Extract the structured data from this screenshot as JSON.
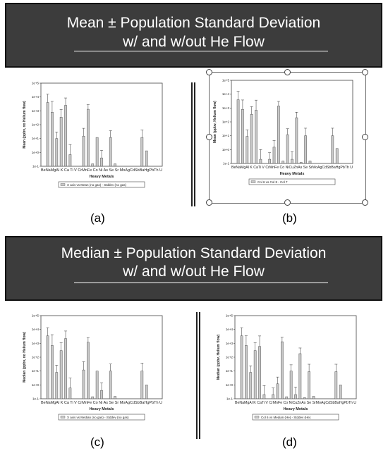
{
  "banners": [
    {
      "line1": "Mean ± Population Standard Deviation",
      "line2": "w/ and w/out He Flow"
    },
    {
      "line1": "Median ± Population Standard Deviation",
      "line2": "w/ and w/out He Flow"
    }
  ],
  "colors": {
    "banner_bg": "#3c3c3c",
    "bar_fill": "#c8c8c8",
    "bar_stroke": "#555555"
  },
  "chart_data": [
    {
      "panel": "(a)",
      "type": "bar",
      "log_scale": true,
      "ylim": [
        0.1,
        100000
      ],
      "yticks": [
        "1e-1",
        "1e+0",
        "1e+1",
        "1e+2",
        "1e+3",
        "1e+4",
        "1e+5"
      ],
      "xlabel": "Heavy Metals",
      "ylabel": "Mean (ppbv, no Helium flow)",
      "categories": [
        "Be",
        "Na",
        "Mg",
        "Al",
        "K",
        "Ca",
        "Ti",
        "V",
        "Cr",
        "Mn",
        "Fe",
        "Co",
        "Ni",
        "Cu",
        "Zn",
        "As",
        "Se",
        "Sr",
        "Mo",
        "Ag",
        "Cd",
        "Sb",
        "Ba",
        "Hg",
        "Pb",
        "Th",
        "U"
      ],
      "tick_label_text": "BeNaMgAl  K  Ca Ti  V  CrMnFe Co Ni As Se Sr MoAgCdSbBaHgPbTh U",
      "values": [
        0.1,
        4000,
        800,
        10,
        350,
        2500,
        0.7,
        0.1,
        0.1,
        15,
        1300,
        0.15,
        12,
        0.4,
        0.1,
        12,
        0.15,
        0.1,
        0.1,
        0.1,
        0.1,
        0.1,
        12,
        1.3,
        0.1,
        0.1,
        0.1
      ],
      "err_upper": [
        0,
        12000,
        4000,
        20,
        900,
        6000,
        3,
        0,
        0,
        40,
        1500,
        0,
        0,
        1,
        0,
        25,
        0,
        0,
        0,
        0,
        0,
        0,
        30,
        0,
        0,
        0,
        0
      ],
      "legend": "X axis vs Mean (no gas) - Stddev (no gas)"
    },
    {
      "panel": "(b)",
      "type": "bar",
      "log_scale": true,
      "ylim": [
        0.1,
        100000
      ],
      "yticks": [
        "1e-1",
        "1e+0",
        "1e+1",
        "1e+2",
        "1e+3",
        "1e+4",
        "1e+5"
      ],
      "xlabel": "Heavy Metals",
      "ylabel": "Mean (ppbv, Helium flow)",
      "categories": [
        "Be",
        "Na",
        "Mg",
        "Al",
        "K",
        "Ca",
        "Ti",
        "V",
        "Cr",
        "Mn",
        "Fe",
        "Co",
        "Ni",
        "Cu",
        "Zn",
        "As",
        "Se",
        "Sr",
        "Mo",
        "Ag",
        "Cd",
        "Sb",
        "Ba",
        "Hg",
        "Pb",
        "Th",
        "U"
      ],
      "tick_label_text": "BeNaMgAl  K  CaTi  V  CrMnFe Co NiCuZnAs Se SrMoAgCdSbBaHgPbTh  U",
      "values": [
        0.1,
        4000,
        800,
        9,
        350,
        700,
        0.2,
        0.1,
        0.2,
        1.5,
        1400,
        0.15,
        12,
        0.2,
        200,
        0.12,
        10,
        0.15,
        0.1,
        0.1,
        0.1,
        0.1,
        10,
        1.2,
        0.1,
        0.1,
        0.1
      ],
      "err_upper": [
        0,
        12000,
        3000,
        18,
        900,
        3000,
        0.8,
        0,
        0.4,
        3,
        1600,
        0,
        20,
        0.5,
        300,
        0,
        25,
        0,
        0,
        0,
        0,
        0,
        25,
        0,
        0,
        0,
        0
      ],
      "legend": "Col 6 vs Col 8 - Col 7"
    },
    {
      "panel": "(c)",
      "type": "bar",
      "log_scale": true,
      "ylim": [
        0.1,
        100000
      ],
      "yticks": [
        "1e-1",
        "1e+0",
        "1e+1",
        "1e+2",
        "1e+3",
        "1e+4",
        "1e+5"
      ],
      "xlabel": "Heavy Metals",
      "ylabel": "Median (ppbv, no Helium flow)",
      "categories": [
        "Be",
        "Na",
        "Mg",
        "Al",
        "K",
        "Ca",
        "Ti",
        "V",
        "Cr",
        "Mn",
        "Fe",
        "Co",
        "Ni",
        "Cu",
        "Zn",
        "As",
        "Se",
        "Sr",
        "Mo",
        "Ag",
        "Cd",
        "Sb",
        "Ba",
        "Hg",
        "Pb",
        "Th",
        "U"
      ],
      "tick_label_text": "BeNaMgAl  K  Ca Ti  V  CrMnFe Co Ni As Se Sr MoAgCdSbBaHgPbTh U",
      "values": [
        0.1,
        3500,
        700,
        8,
        300,
        2200,
        0.6,
        0.1,
        0.1,
        12,
        1200,
        0.14,
        10,
        0.4,
        0.1,
        10,
        0.15,
        0.1,
        0.1,
        0.1,
        0.1,
        0.1,
        10,
        1.0,
        0.1,
        0.1,
        0.1
      ],
      "err_upper": [
        0,
        10000,
        3500,
        18,
        800,
        5500,
        2.5,
        0,
        0,
        35,
        1400,
        0,
        0,
        1,
        0,
        22,
        0,
        0,
        0,
        0,
        0,
        0,
        28,
        0,
        0,
        0,
        0
      ],
      "legend": "X axis vs Median (no gas) - Stddev (no gas)"
    },
    {
      "panel": "(d)",
      "type": "bar",
      "log_scale": true,
      "ylim": [
        0.1,
        100000
      ],
      "yticks": [
        "1e-1",
        "1e+0",
        "1e+1",
        "1e+2",
        "1e+3",
        "1e+4",
        "1e+5"
      ],
      "xlabel": "Heavy Metals",
      "ylabel": "Median (ppbv, Helium flow)",
      "categories": [
        "Be",
        "Na",
        "Mg",
        "Al",
        "K",
        "Ca",
        "Ti",
        "V",
        "Cr",
        "Mn",
        "Fe",
        "Co",
        "Ni",
        "Cu",
        "Zn",
        "As",
        "Se",
        "Sr",
        "Mo",
        "Ag",
        "Cd",
        "Sb",
        "Ba",
        "Hg",
        "Pb",
        "Th",
        "U"
      ],
      "tick_label_text": "BeNaMgAl  K  CaTi  V  CrMnFe Co NiCuZnAs Se SrMoAgCdSbBaHgPbTh  U",
      "values": [
        0.1,
        3500,
        700,
        8,
        300,
        600,
        0.2,
        0.1,
        0.2,
        1.2,
        1300,
        0.14,
        10,
        0.2,
        180,
        0.12,
        9,
        0.15,
        0.1,
        0.1,
        0.1,
        0.1,
        9,
        1.0,
        0.1,
        0.1,
        0.1
      ],
      "err_upper": [
        0,
        10000,
        2800,
        16,
        800,
        2800,
        0.7,
        0,
        0.4,
        2.5,
        1500,
        0,
        18,
        0.5,
        280,
        0,
        22,
        0,
        0,
        0,
        0,
        0,
        22,
        0,
        0,
        0,
        0
      ],
      "legend": "Col 6 vs Median (He) - Stddev (He)"
    }
  ]
}
